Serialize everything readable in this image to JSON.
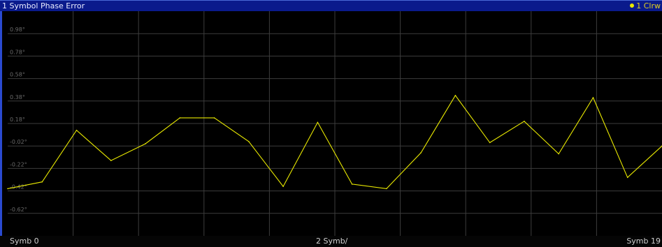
{
  "window": {
    "title": "1 Symbol Phase Error",
    "trace_label": "1 Clrw",
    "trace_color": "#e8e800"
  },
  "footer": {
    "left": "Symb 0",
    "center": "2 Symb/",
    "right": "Symb 19"
  },
  "chart_data": {
    "type": "line",
    "title": "1 Symbol Phase Error",
    "xlabel": "",
    "ylabel": "",
    "y_ticks": [
      "0.98°",
      "0.78°",
      "0.58°",
      "0.38°",
      "0.18°",
      "-0.02°",
      "-0.22°",
      "-0.42°",
      "-0.62°"
    ],
    "y_tick_values": [
      0.98,
      0.78,
      0.58,
      0.38,
      0.18,
      -0.02,
      -0.22,
      -0.42,
      -0.62
    ],
    "ylim": [
      -0.82,
      1.18
    ],
    "xlim": [
      0,
      19
    ],
    "grid": true,
    "series": [
      {
        "color": "#e8e800",
        "x": [
          0,
          1,
          2,
          3,
          4,
          5,
          6,
          7,
          8,
          9,
          10,
          11,
          12,
          13,
          14,
          15,
          16,
          17,
          18,
          19
        ],
        "values": [
          -0.4,
          -0.34,
          0.12,
          -0.15,
          0.0,
          0.23,
          0.23,
          0.02,
          -0.38,
          0.19,
          -0.36,
          -0.4,
          -0.08,
          0.43,
          0.01,
          0.2,
          -0.09,
          0.41,
          -0.3,
          -0.02
        ]
      }
    ]
  }
}
